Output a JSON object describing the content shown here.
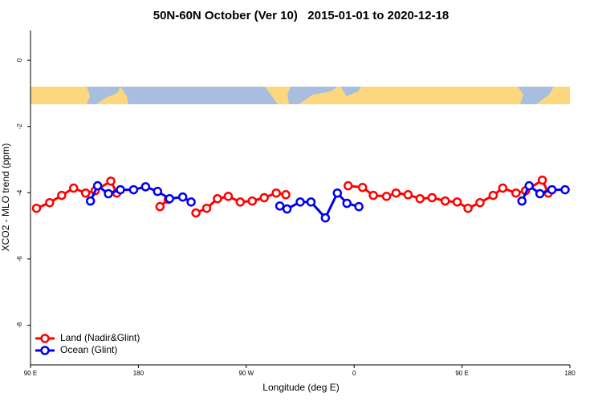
{
  "chart_data": {
    "type": "line",
    "title": "50N-60N October (Ver 10)   2015-01-01 to 2020-12-18",
    "x_label": "Longitude (deg E)",
    "y_label": "XCO2 - MLO trend (ppm)",
    "xlim": [
      90,
      540
    ],
    "ylim": [
      -9.2,
      0.9
    ],
    "xticks": [
      {
        "value": 90,
        "label": "90 E"
      },
      {
        "value": 180,
        "label": "180"
      },
      {
        "value": 270,
        "label": "90 W"
      },
      {
        "value": 360,
        "label": "0"
      },
      {
        "value": 450,
        "label": "90 E"
      },
      {
        "value": 540,
        "label": "180"
      }
    ],
    "yticks": [
      0,
      -2,
      -4,
      -6,
      -8
    ],
    "legend_position": "bottom-left",
    "series": [
      {
        "name": "Land (Nadir&Glint)",
        "color": "#ff0000",
        "x": [
          95,
          106,
          116,
          126,
          136,
          144,
          157,
          162,
          null,
          198,
          205,
          null,
          228,
          237,
          246,
          255,
          265,
          275,
          285,
          295,
          303,
          null,
          355,
          367,
          376,
          387,
          395,
          405,
          415,
          425,
          436,
          446,
          455,
          465,
          476,
          484,
          495,
          503,
          517,
          522
        ],
        "values": [
          -4.47,
          -4.3,
          -4.08,
          -3.86,
          -4.01,
          -3.94,
          -3.65,
          -4.01,
          null,
          -4.42,
          -4.2,
          null,
          -4.61,
          -4.47,
          -4.18,
          -4.11,
          -4.28,
          -4.25,
          -4.15,
          -4.01,
          -4.06,
          null,
          -3.79,
          -3.84,
          -4.08,
          -4.11,
          -4.01,
          -4.06,
          -4.18,
          -4.15,
          -4.25,
          -4.28,
          -4.47,
          -4.3,
          -4.08,
          -3.86,
          -4.01,
          -3.94,
          -3.62,
          -4.01
        ]
      },
      {
        "name": "Ocean (Glint)",
        "color": "#0000ee",
        "x": [
          140,
          146,
          155,
          165,
          176,
          186,
          196,
          206,
          217,
          224,
          null,
          298,
          304,
          315,
          324,
          336,
          346,
          354,
          364,
          null,
          500,
          506,
          515,
          525,
          536
        ],
        "values": [
          -4.25,
          -3.79,
          -4.03,
          -3.91,
          -3.91,
          -3.82,
          -3.96,
          -4.18,
          -4.13,
          -4.28,
          null,
          -4.4,
          -4.49,
          -4.28,
          -4.28,
          -4.76,
          -4.01,
          -4.32,
          -4.42,
          null,
          -4.25,
          -3.79,
          -4.03,
          -3.91,
          -3.91
        ]
      }
    ]
  }
}
